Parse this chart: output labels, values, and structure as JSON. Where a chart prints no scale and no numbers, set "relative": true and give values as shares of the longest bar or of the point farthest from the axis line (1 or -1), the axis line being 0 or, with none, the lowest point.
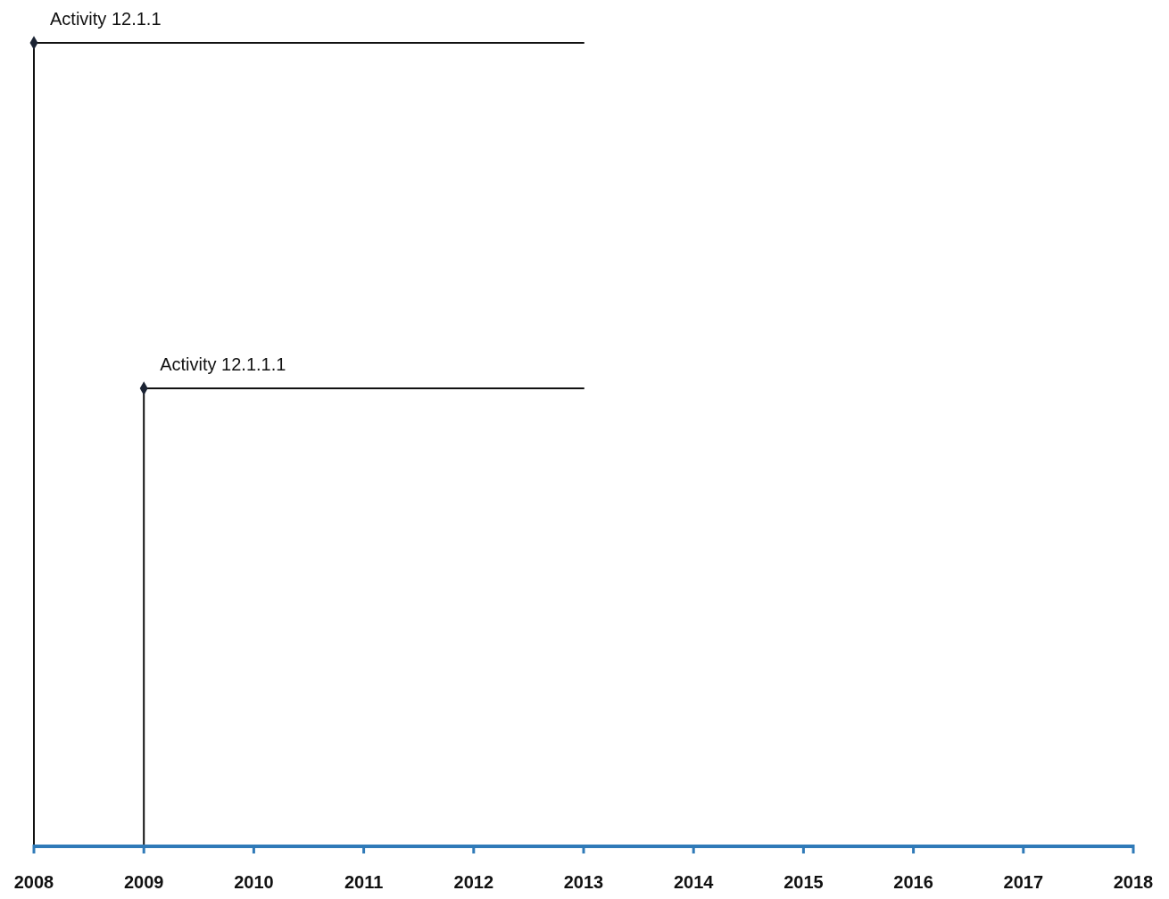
{
  "chart_data": {
    "type": "line",
    "relative": true,
    "xlim": [
      2008,
      2018
    ],
    "xticks": [
      2008,
      2009,
      2010,
      2011,
      2012,
      2013,
      2014,
      2015,
      2016,
      2017,
      2018
    ],
    "series": [
      {
        "name": "Activity 12.1.1",
        "color": "#111111",
        "x": [
          2008,
          2013
        ],
        "values": [
          1,
          1
        ]
      },
      {
        "name": "Activity 12.1.1.1",
        "color": "#111111",
        "x": [
          2009,
          2013
        ],
        "values": [
          0.57,
          0.57
        ]
      },
      {
        "type": "scatter",
        "marker": "diamond",
        "color": "#1b2333",
        "x": [
          2008,
          2009
        ],
        "values": [
          1,
          0.57
        ]
      }
    ]
  }
}
